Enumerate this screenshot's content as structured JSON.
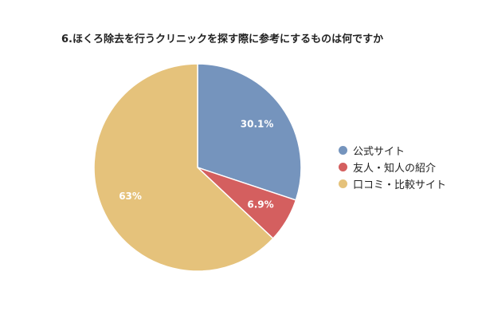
{
  "chart_data": {
    "type": "pie",
    "title": "6.ほくろ除去を行うクリニックを探す際に参考にするものは何ですか",
    "categories": [
      "公式サイト",
      "友人・知人の紹介",
      "口コミ・比較サイト"
    ],
    "values": [
      30.1,
      6.9,
      63
    ],
    "data_labels": [
      "30.1%",
      "6.9%",
      "63%"
    ],
    "colors": [
      "#7594bd",
      "#d45f5f",
      "#e5c27b"
    ],
    "legend_position": "right"
  }
}
